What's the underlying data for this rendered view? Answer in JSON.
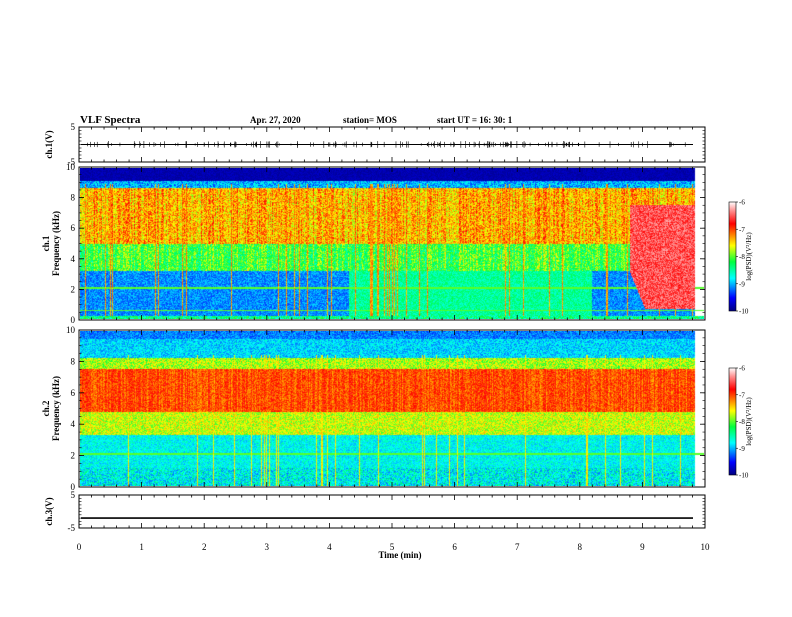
{
  "header": {
    "title": "VLF Spectra",
    "date": "Apr. 27, 2020",
    "station": "station= MOS",
    "start": "start  UT =   16: 30: 1"
  },
  "chart_data": [
    {
      "type": "line",
      "ylabel": "ch.1(V)",
      "ylim": [
        -5,
        5
      ],
      "yticks": [
        "5",
        "-5"
      ],
      "xlim": [
        0,
        10
      ],
      "series_level": 0,
      "grid": false
    },
    {
      "type": "heatmap",
      "ylabel": "ch.1\nFrequency (kHz)",
      "ylabel_top": "ch.1",
      "ylabel_main": "Frequency (kHz)",
      "ylim": [
        0,
        10
      ],
      "yticks": [
        "0",
        "2",
        "4",
        "6",
        "8",
        "10"
      ],
      "xlim": [
        0,
        10
      ],
      "colorbar": {
        "label": "log(PSD)(V²/Hz)",
        "ticks": [
          "-6",
          "-7",
          "-8",
          "-9",
          "-10"
        ],
        "range": [
          -10,
          -6
        ]
      },
      "description_levels": {
        "noise_floor_above_khz": 9,
        "dominant_band_khz": [
          5,
          8
        ],
        "emission_burst_start_min": 8.8
      }
    },
    {
      "type": "heatmap",
      "ylabel": "ch.2\nFrequency (kHz)",
      "ylabel_top": "ch.2",
      "ylabel_main": "Frequency (kHz)",
      "ylim": [
        0,
        10
      ],
      "yticks": [
        "0",
        "2",
        "4",
        "6",
        "8",
        "10"
      ],
      "xlim": [
        0,
        10
      ],
      "colorbar": {
        "label": "log(PSD)(V²/Hz)",
        "ticks": [
          "-6",
          "-7",
          "-8",
          "-9",
          "-10"
        ],
        "range": [
          -10,
          -6
        ]
      }
    },
    {
      "type": "line",
      "ylabel": "ch.3(V)",
      "ylim": [
        -5,
        5
      ],
      "yticks": [
        "5",
        "-5"
      ],
      "xlim": [
        0,
        10
      ],
      "series_level": -2,
      "grid": false
    }
  ],
  "xaxis": {
    "label": "Time  (min)",
    "ticks": [
      "0",
      "1",
      "2",
      "3",
      "4",
      "5",
      "6",
      "7",
      "8",
      "9",
      "10"
    ]
  }
}
